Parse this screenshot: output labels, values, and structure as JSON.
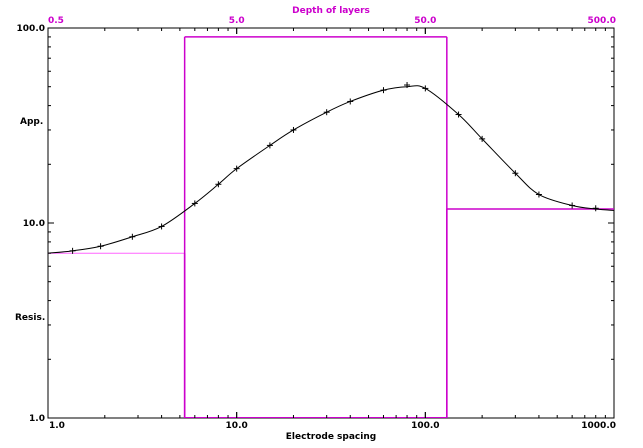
{
  "chart_data": {
    "type": "line",
    "title": "",
    "xlabel": "Electrode spacing",
    "ylabel_top": "App.",
    "ylabel_bottom": "Resis.",
    "x_scale": "log",
    "y_scale": "log",
    "xlim": [
      1.0,
      1000.0
    ],
    "ylim": [
      1.0,
      100.0
    ],
    "x_ticks": [
      {
        "value": 1.0,
        "label": "1.0"
      },
      {
        "value": 10.0,
        "label": "10.0"
      },
      {
        "value": 100.0,
        "label": "100.0"
      },
      {
        "value": 1000.0,
        "label": "1000.0"
      }
    ],
    "y_ticks": [
      {
        "value": 1.0,
        "label": "1.0"
      },
      {
        "value": 10.0,
        "label": "10.0"
      },
      {
        "value": 100.0,
        "label": "100.0"
      }
    ],
    "top_axis": {
      "label": "Depth of layers",
      "range": [
        0.5,
        500.0
      ],
      "ticks": [
        {
          "value": 0.5,
          "label": "0.5"
        },
        {
          "value": 5.0,
          "label": "5.0"
        },
        {
          "value": 50.0,
          "label": "50.0"
        },
        {
          "value": 500.0,
          "label": "500.0"
        }
      ]
    },
    "series": [
      {
        "kind": "observed-points",
        "x": [
          1.35,
          1.9,
          2.8,
          4.0,
          6.0,
          8.0,
          10.0,
          15.0,
          20.0,
          30.0,
          40.0,
          60.0,
          80.0,
          100.0,
          150.0,
          200.0,
          300.0,
          400.0,
          600.0,
          800.0
        ],
        "y": [
          7.2,
          7.6,
          8.5,
          9.6,
          12.6,
          15.8,
          19.0,
          25.0,
          30.0,
          37.0,
          42.0,
          48.0,
          51.0,
          49.0,
          36.0,
          27.0,
          18.0,
          14.0,
          12.3,
          11.9
        ]
      },
      {
        "kind": "calculated-curve",
        "x": [
          1.0,
          1.35,
          1.9,
          2.8,
          4.0,
          6.0,
          8.0,
          10.0,
          15.0,
          20.0,
          30.0,
          40.0,
          60.0,
          80.0,
          100.0,
          150.0,
          200.0,
          300.0,
          400.0,
          600.0,
          800.0,
          1000.0
        ],
        "y": [
          7.0,
          7.2,
          7.6,
          8.5,
          9.6,
          12.6,
          15.8,
          19.0,
          25.0,
          30.0,
          37.0,
          42.0,
          48.0,
          50.0,
          49.0,
          36.0,
          27.0,
          18.0,
          14.0,
          12.3,
          11.8,
          11.6
        ]
      },
      {
        "kind": "layer-model",
        "layers": [
          {
            "from": 0.5,
            "to": 2.65,
            "resistivity": 7.0
          },
          {
            "from": 2.65,
            "to": 65.0,
            "resistivity": 90.0
          },
          {
            "from": 65.0,
            "to": 500.0,
            "resistivity": 11.8
          }
        ]
      }
    ],
    "colors": {
      "curve": "#000000",
      "model": "#cc00cc",
      "model_first_layer": "#ff66ff"
    }
  }
}
